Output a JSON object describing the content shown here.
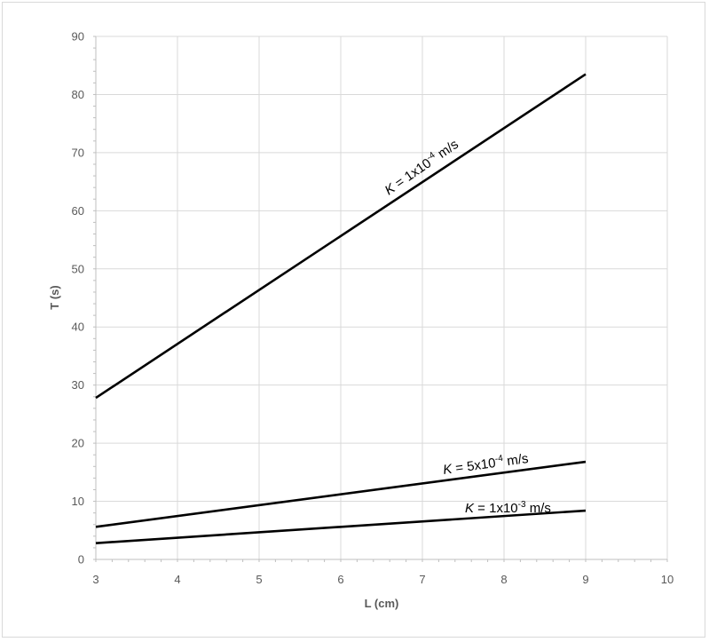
{
  "chart_data": {
    "type": "line",
    "title": "",
    "xlabel": "L (cm)",
    "ylabel": "T (s)",
    "xlim": [
      3,
      10
    ],
    "ylim": [
      0,
      90
    ],
    "xticks": [
      "3",
      "4",
      "5",
      "6",
      "7",
      "8",
      "9",
      "10"
    ],
    "yticks": [
      "0",
      "10",
      "20",
      "30",
      "40",
      "50",
      "60",
      "70",
      "80",
      "90"
    ],
    "grid": true,
    "legend": "none",
    "series": [
      {
        "label_k": "K",
        "label_eq": " = 1x10",
        "label_exp": "-4",
        "label_unit": " m/s",
        "x": [
          3,
          9
        ],
        "y": [
          27.8,
          83.5
        ],
        "color": "#000000"
      },
      {
        "label_k": "K",
        "label_eq": " = 5x10",
        "label_exp": "-4",
        "label_unit": " m/s",
        "x": [
          3,
          9
        ],
        "y": [
          5.6,
          16.8
        ],
        "color": "#000000"
      },
      {
        "label_k": "K",
        "label_eq": " = 1x10",
        "label_exp": "-3",
        "label_unit": " m/s",
        "x": [
          3,
          9
        ],
        "y": [
          2.8,
          8.4
        ],
        "color": "#000000"
      }
    ]
  }
}
